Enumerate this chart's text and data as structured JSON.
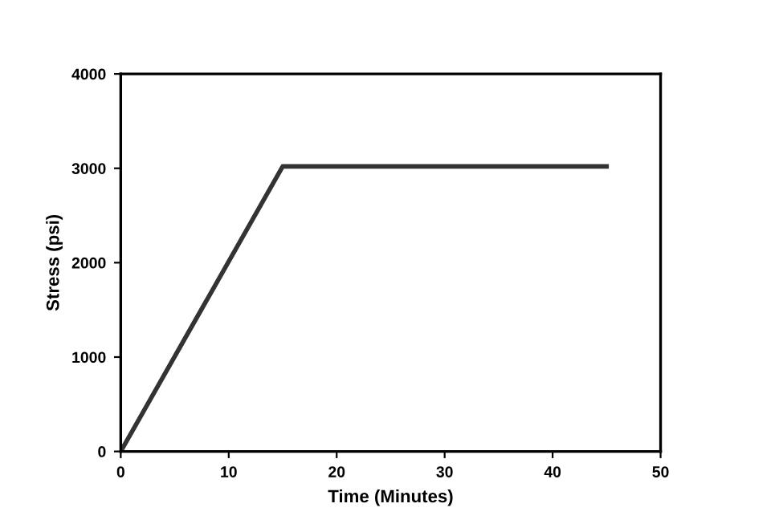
{
  "chart_data": {
    "type": "line",
    "xlabel": "Time (Minutes)",
    "ylabel": "Stress (psi)",
    "x": [
      0,
      15,
      45
    ],
    "series": [
      {
        "color": "#333333",
        "values": [
          0,
          3020,
          3020
        ]
      }
    ],
    "xlim": [
      0,
      50
    ],
    "xticks": [
      0,
      10,
      20,
      30,
      40,
      50
    ],
    "ylim": [
      0,
      4000
    ],
    "yticks": [
      0,
      1000,
      2000,
      3000,
      4000
    ],
    "grid": false,
    "marker": "none",
    "line_style": "solid"
  }
}
